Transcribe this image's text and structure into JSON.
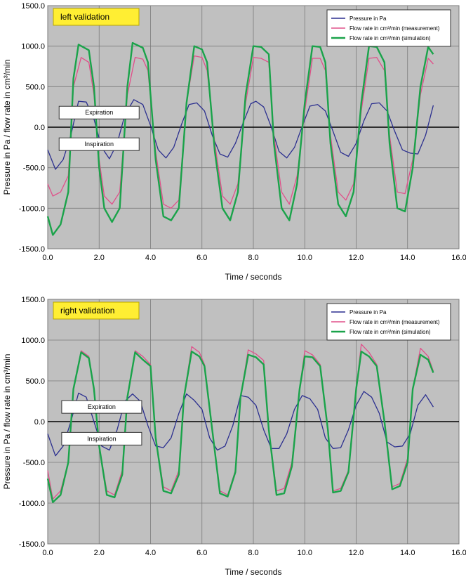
{
  "chart_data": [
    {
      "type": "line",
      "badge": "left validation",
      "xlabel": "Time / seconds",
      "ylabel": "Pressure in Pa  /  flow rate in cm³/min",
      "xlim": [
        0,
        16
      ],
      "ylim": [
        -1500,
        1500
      ],
      "x_ticks": [
        "0.0",
        "2.0",
        "4.0",
        "6.0",
        "8.0",
        "10.0",
        "12.0",
        "14.0",
        "16.0"
      ],
      "y_ticks": [
        "1500.0",
        "1000.0",
        "500.0",
        "0.0",
        "-500.0",
        "-1000.0",
        "-1500.0"
      ],
      "grid": true,
      "legend_position": "top-right",
      "annotations": [
        {
          "text": "Expiration",
          "x": 2.0,
          "y": 180
        },
        {
          "text": "Inspiration",
          "x": 2.0,
          "y": -210
        }
      ],
      "series": [
        {
          "name": "Pressure in Pa",
          "color": "#2b2f8f",
          "x": [
            0.0,
            0.3,
            0.6,
            0.9,
            1.2,
            1.5,
            1.8,
            2.1,
            2.4,
            2.7,
            3.0,
            3.35,
            3.7,
            4.0,
            4.3,
            4.6,
            4.9,
            5.2,
            5.5,
            5.8,
            6.1,
            6.4,
            6.7,
            7.0,
            7.3,
            7.6,
            7.9,
            8.1,
            8.4,
            8.7,
            9.0,
            9.3,
            9.6,
            9.9,
            10.2,
            10.5,
            10.8,
            11.1,
            11.4,
            11.7,
            12.0,
            12.3,
            12.6,
            12.9,
            13.2,
            13.5,
            13.8,
            14.1,
            14.4,
            14.7,
            15.0
          ],
          "y": [
            -280,
            -520,
            -400,
            -100,
            320,
            310,
            100,
            -250,
            -390,
            -200,
            150,
            340,
            280,
            20,
            -280,
            -380,
            -250,
            30,
            280,
            300,
            200,
            -100,
            -330,
            -370,
            -200,
            50,
            290,
            320,
            250,
            0,
            -300,
            -380,
            -250,
            10,
            260,
            280,
            200,
            -50,
            -310,
            -360,
            -200,
            80,
            290,
            300,
            200,
            -50,
            -280,
            -320,
            -330,
            -100,
            270
          ]
        },
        {
          "name": "Flow rate in cm³/min (measurement)",
          "color": "#e0508a",
          "x": [
            0.0,
            0.2,
            0.5,
            0.8,
            1.0,
            1.3,
            1.6,
            1.8,
            2.0,
            2.2,
            2.5,
            2.8,
            3.1,
            3.4,
            3.7,
            3.9,
            4.2,
            4.5,
            4.8,
            5.1,
            5.4,
            5.7,
            6.0,
            6.2,
            6.5,
            6.8,
            7.1,
            7.4,
            7.7,
            8.0,
            8.3,
            8.6,
            8.8,
            9.1,
            9.4,
            9.7,
            10.0,
            10.3,
            10.6,
            10.8,
            11.0,
            11.3,
            11.6,
            11.9,
            12.2,
            12.5,
            12.8,
            13.1,
            13.3,
            13.6,
            13.9,
            14.2,
            14.5,
            14.8,
            15.0
          ],
          "y": [
            -700,
            -850,
            -800,
            -600,
            500,
            860,
            800,
            400,
            -400,
            -850,
            -950,
            -800,
            400,
            860,
            840,
            700,
            -300,
            -950,
            -1000,
            -900,
            300,
            880,
            860,
            700,
            -200,
            -850,
            -950,
            -700,
            300,
            860,
            850,
            800,
            -100,
            -800,
            -950,
            -600,
            200,
            850,
            850,
            700,
            -100,
            -800,
            -900,
            -700,
            200,
            850,
            860,
            700,
            -100,
            -800,
            -820,
            -400,
            400,
            850,
            780
          ]
        },
        {
          "name": "Flow rate in cm³/min (simulation)",
          "color": "#1aa34a",
          "x": [
            0.0,
            0.2,
            0.5,
            0.8,
            1.0,
            1.2,
            1.6,
            1.8,
            2.0,
            2.2,
            2.5,
            2.8,
            3.1,
            3.3,
            3.7,
            3.9,
            4.2,
            4.5,
            4.8,
            5.1,
            5.4,
            5.7,
            6.0,
            6.2,
            6.5,
            6.8,
            7.1,
            7.4,
            7.7,
            8.0,
            8.3,
            8.6,
            8.8,
            9.1,
            9.4,
            9.7,
            10.0,
            10.3,
            10.6,
            10.8,
            11.0,
            11.3,
            11.6,
            11.9,
            12.2,
            12.5,
            12.8,
            13.1,
            13.3,
            13.6,
            13.9,
            14.2,
            14.5,
            14.8,
            15.0
          ],
          "y": [
            -1100,
            -1330,
            -1200,
            -800,
            600,
            1020,
            950,
            500,
            -500,
            -1000,
            -1170,
            -1000,
            500,
            1040,
            980,
            800,
            -400,
            -1100,
            -1150,
            -1000,
            300,
            1000,
            960,
            800,
            -300,
            -1000,
            -1150,
            -800,
            400,
            1000,
            990,
            900,
            -200,
            -1000,
            -1150,
            -700,
            300,
            1000,
            990,
            800,
            -200,
            -950,
            -1100,
            -800,
            300,
            1000,
            990,
            800,
            -200,
            -1000,
            -1040,
            -500,
            500,
            990,
            900
          ]
        }
      ]
    },
    {
      "type": "line",
      "badge": "right validation",
      "xlabel": "Time / seconds",
      "ylabel": "Pressure in Pa  /  flow rate in cm³/min",
      "xlim": [
        0,
        16
      ],
      "ylim": [
        -1500,
        1500
      ],
      "x_ticks": [
        "0.0",
        "2.0",
        "4.0",
        "6.0",
        "8.0",
        "10.0",
        "12.0",
        "14.0",
        "16.0"
      ],
      "y_ticks": [
        "1500.0",
        "1000.0",
        "500.0",
        "0.0",
        "-500.0",
        "-1000.0",
        "-1500.0"
      ],
      "grid": true,
      "legend_position": "top-right",
      "annotations": [
        {
          "text": "Expiration",
          "x": 2.1,
          "y": 180
        },
        {
          "text": "Inspiration",
          "x": 2.1,
          "y": -210
        }
      ],
      "series": [
        {
          "name": "Pressure in Pa",
          "color": "#2b2f8f",
          "x": [
            0.0,
            0.3,
            0.6,
            0.9,
            1.2,
            1.5,
            1.8,
            2.1,
            2.4,
            2.7,
            3.0,
            3.3,
            3.6,
            3.9,
            4.2,
            4.5,
            4.8,
            5.1,
            5.4,
            5.7,
            6.0,
            6.3,
            6.6,
            6.9,
            7.2,
            7.5,
            7.8,
            8.1,
            8.4,
            8.7,
            9.0,
            9.3,
            9.6,
            9.9,
            10.2,
            10.5,
            10.8,
            11.1,
            11.4,
            11.7,
            12.0,
            12.3,
            12.6,
            12.9,
            13.2,
            13.5,
            13.8,
            14.1,
            14.4,
            14.7,
            15.0
          ],
          "y": [
            -150,
            -420,
            -300,
            0,
            350,
            300,
            0,
            -300,
            -350,
            -100,
            250,
            340,
            250,
            -50,
            -300,
            -320,
            -200,
            100,
            340,
            260,
            150,
            -200,
            -350,
            -300,
            -50,
            320,
            300,
            200,
            -100,
            -330,
            -330,
            -150,
            150,
            320,
            280,
            150,
            -200,
            -330,
            -320,
            -100,
            200,
            370,
            300,
            100,
            -250,
            -310,
            -300,
            -150,
            200,
            330,
            180
          ]
        },
        {
          "name": "Flow rate in cm³/min (measurement)",
          "color": "#e0508a",
          "x": [
            0.0,
            0.2,
            0.5,
            0.8,
            1.0,
            1.3,
            1.6,
            1.8,
            2.0,
            2.3,
            2.6,
            2.9,
            3.1,
            3.4,
            3.7,
            4.0,
            4.2,
            4.5,
            4.8,
            5.1,
            5.3,
            5.6,
            5.9,
            6.1,
            6.4,
            6.7,
            7.0,
            7.3,
            7.5,
            7.8,
            8.1,
            8.4,
            8.6,
            8.9,
            9.2,
            9.5,
            9.8,
            10.0,
            10.3,
            10.6,
            10.9,
            11.1,
            11.4,
            11.7,
            12.0,
            12.2,
            12.5,
            12.8,
            13.1,
            13.4,
            13.7,
            14.0,
            14.2,
            14.5,
            14.8,
            15.0
          ],
          "y": [
            -600,
            -950,
            -850,
            -500,
            400,
            870,
            800,
            400,
            -300,
            -850,
            -900,
            -600,
            300,
            870,
            800,
            700,
            -200,
            -800,
            -850,
            -600,
            300,
            920,
            850,
            700,
            -100,
            -850,
            -900,
            -600,
            300,
            880,
            830,
            750,
            -100,
            -850,
            -820,
            -500,
            400,
            870,
            820,
            700,
            -100,
            -850,
            -820,
            -600,
            400,
            950,
            850,
            700,
            0,
            -800,
            -760,
            -450,
            400,
            900,
            800,
            620
          ]
        },
        {
          "name": "Flow rate in cm³/min (simulation)",
          "color": "#1aa34a",
          "x": [
            0.0,
            0.2,
            0.5,
            0.8,
            1.0,
            1.3,
            1.6,
            1.8,
            2.0,
            2.3,
            2.6,
            2.9,
            3.1,
            3.4,
            3.7,
            4.0,
            4.2,
            4.5,
            4.8,
            5.1,
            5.3,
            5.6,
            5.9,
            6.1,
            6.4,
            6.7,
            7.0,
            7.3,
            7.5,
            7.8,
            8.1,
            8.4,
            8.6,
            8.9,
            9.2,
            9.5,
            9.8,
            10.0,
            10.3,
            10.6,
            10.9,
            11.1,
            11.4,
            11.7,
            12.0,
            12.2,
            12.5,
            12.8,
            13.1,
            13.4,
            13.7,
            14.0,
            14.2,
            14.5,
            14.8,
            15.0
          ],
          "y": [
            -700,
            -990,
            -900,
            -500,
            400,
            850,
            780,
            400,
            -300,
            -900,
            -930,
            -650,
            300,
            850,
            760,
            680,
            -200,
            -850,
            -880,
            -650,
            300,
            860,
            800,
            680,
            -100,
            -880,
            -920,
            -620,
            300,
            820,
            790,
            700,
            -100,
            -900,
            -880,
            -550,
            400,
            800,
            790,
            680,
            -100,
            -870,
            -850,
            -620,
            400,
            860,
            800,
            680,
            0,
            -830,
            -790,
            -500,
            400,
            820,
            760,
            600
          ]
        }
      ]
    }
  ]
}
